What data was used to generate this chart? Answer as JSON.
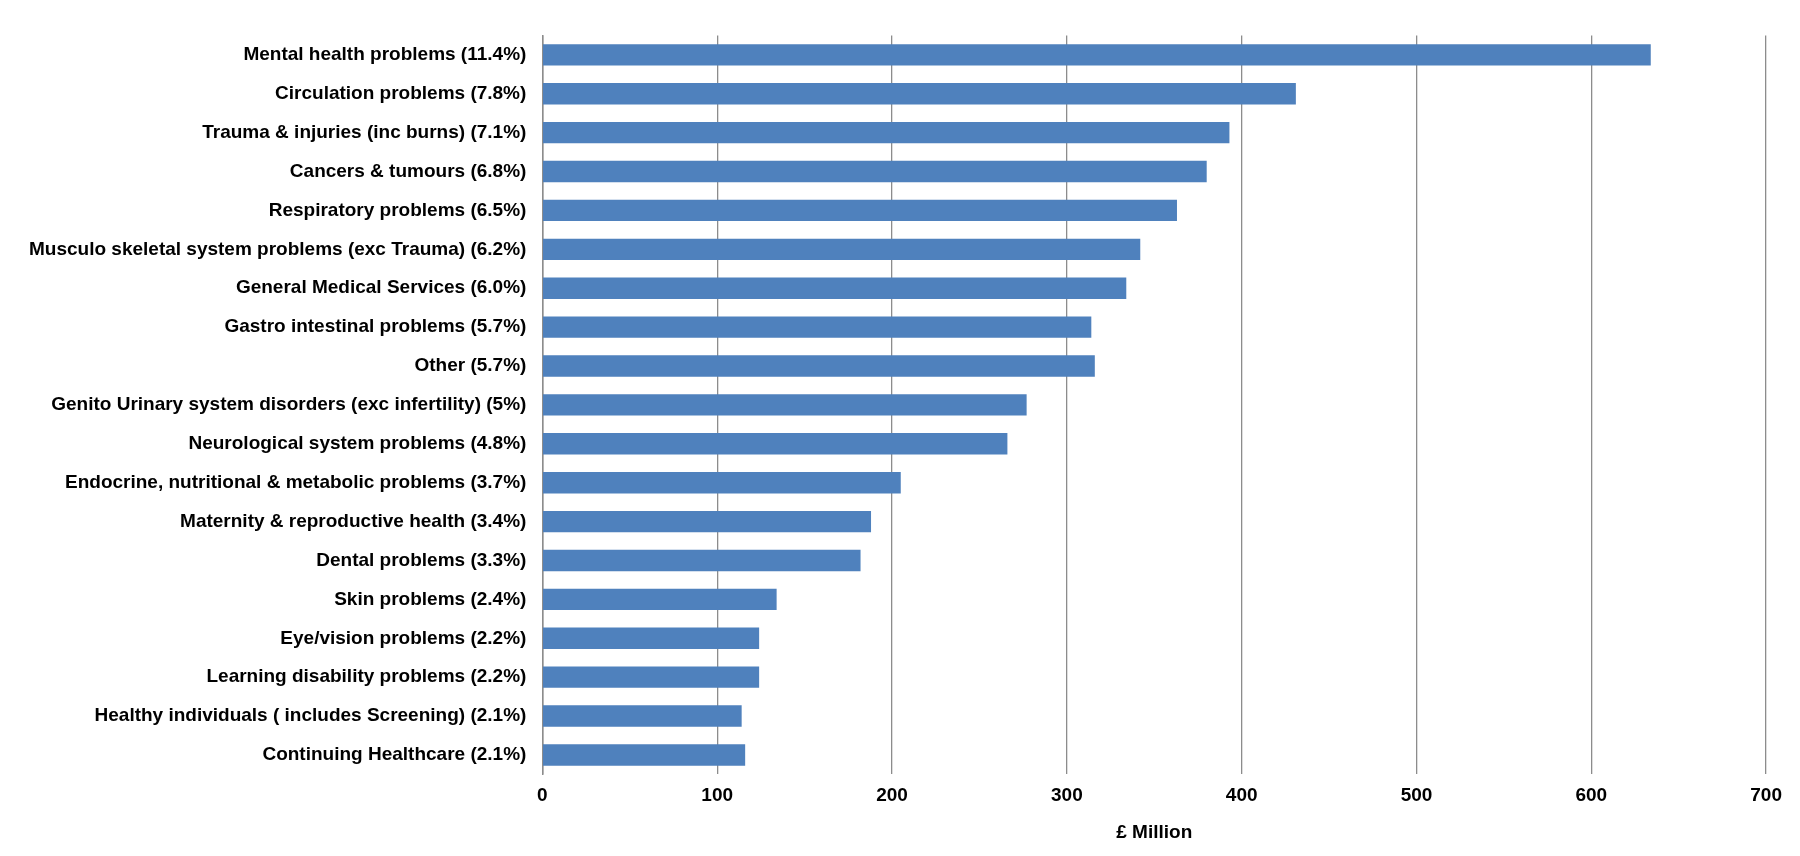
{
  "chart_data": {
    "type": "bar",
    "orientation": "horizontal",
    "xlabel": "£ Million",
    "categories": [
      "Mental health problems (11.4%)",
      "Circulation problems (7.8%)",
      "Trauma & injuries (inc burns) (7.1%)",
      "Cancers & tumours (6.8%)",
      "Respiratory problems (6.5%)",
      "Musculo skeletal system problems (exc Trauma) (6.2%)",
      "General Medical Services (6.0%)",
      "Gastro intestinal problems (5.7%)",
      "Other (5.7%)",
      "Genito Urinary system disorders (exc infertility) (5%)",
      "Neurological system problems (4.8%)",
      "Endocrine, nutritional & metabolic problems (3.7%)",
      "Maternity & reproductive health (3.4%)",
      "Dental problems (3.3%)",
      "Skin problems (2.4%)",
      "Eye/vision problems (2.2%)",
      "Learning disability problems (2.2%)",
      "Healthy individuals ( includes Screening) (2.1%)",
      "Continuing Healthcare (2.1%)"
    ],
    "values": [
      634,
      431,
      393,
      380,
      363,
      342,
      334,
      314,
      316,
      277,
      266,
      205,
      188,
      182,
      134,
      124,
      124,
      114,
      116
    ],
    "color": "#4f81bd",
    "xlim": [
      0,
      700
    ],
    "xticks": [
      0,
      100,
      200,
      300,
      400,
      500,
      600,
      700
    ],
    "grid": "x",
    "legend": false
  }
}
